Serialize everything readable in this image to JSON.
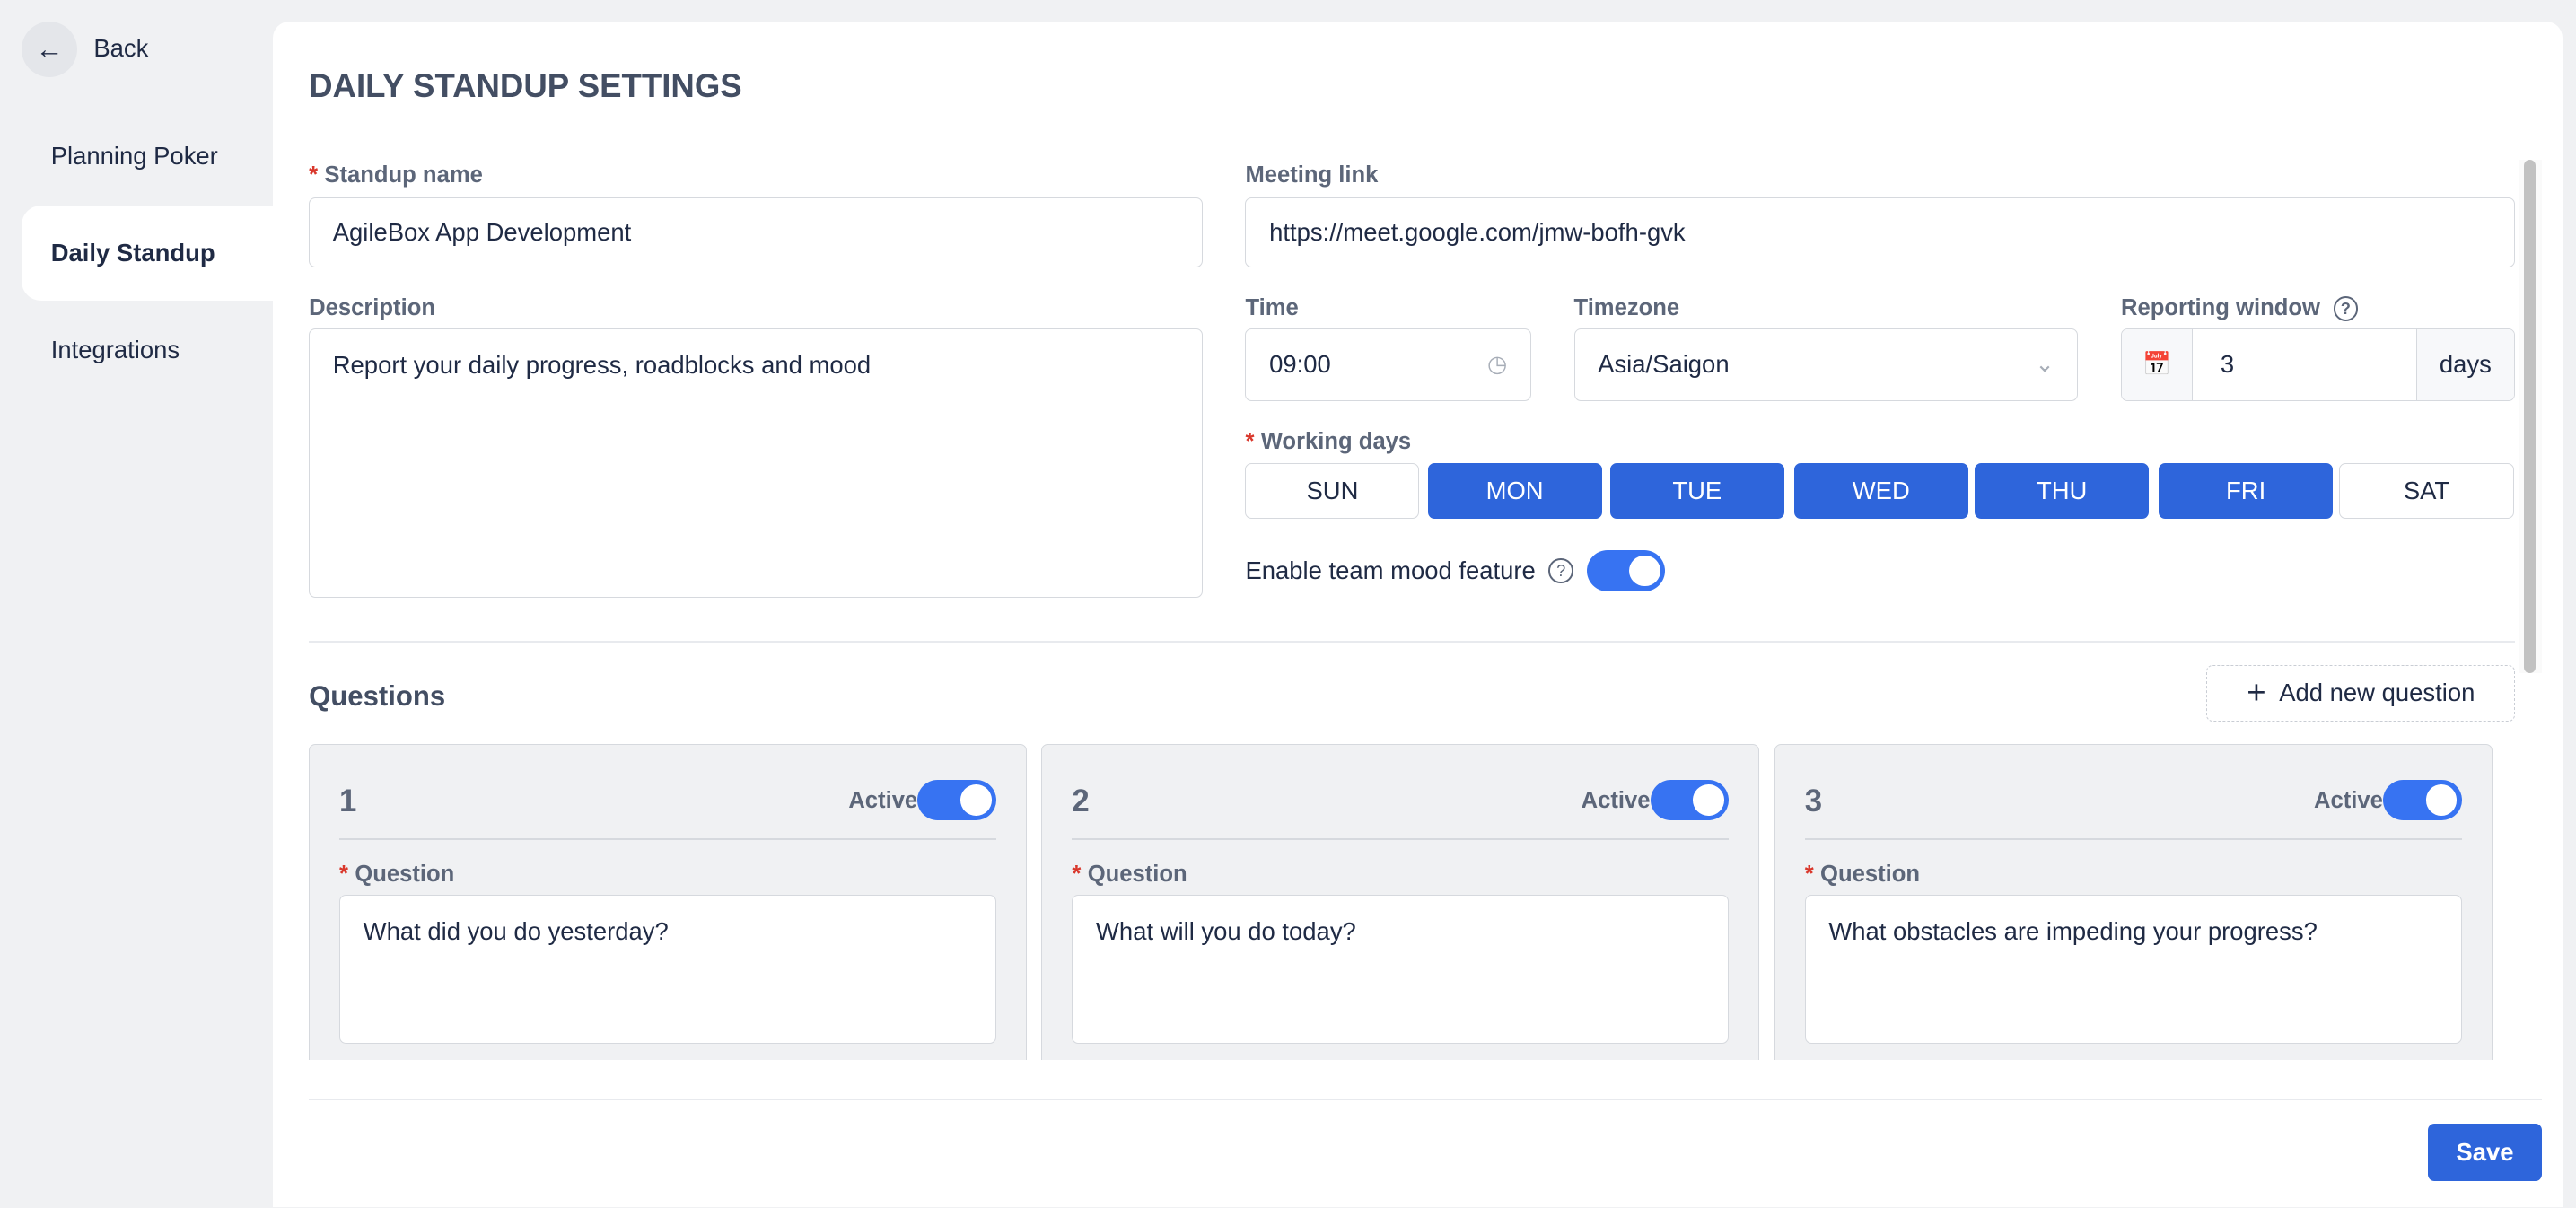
{
  "sidebar": {
    "back_label": "Back",
    "items": [
      {
        "label": "Planning Poker"
      },
      {
        "label": "Daily Standup",
        "active": true
      },
      {
        "label": "Integrations"
      }
    ]
  },
  "page": {
    "title": "DAILY STANDUP SETTINGS"
  },
  "form": {
    "standup_name": {
      "label": "Standup name",
      "value": "AgileBox App Development",
      "required": true
    },
    "meeting_link": {
      "label": "Meeting link",
      "value": "https://meet.google.com/jmw-bofh-gvk"
    },
    "description": {
      "label": "Description",
      "value": "Report your daily progress, roadblocks and mood"
    },
    "time": {
      "label": "Time",
      "value": "09:00"
    },
    "timezone": {
      "label": "Timezone",
      "value": "Asia/Saigon"
    },
    "reporting_window": {
      "label": "Reporting window",
      "value": "3",
      "unit": "days"
    },
    "working_days": {
      "label": "Working days",
      "required": true,
      "days": [
        {
          "label": "SUN",
          "selected": false
        },
        {
          "label": "MON",
          "selected": true
        },
        {
          "label": "TUE",
          "selected": true
        },
        {
          "label": "WED",
          "selected": true
        },
        {
          "label": "THU",
          "selected": true
        },
        {
          "label": "FRI",
          "selected": true
        },
        {
          "label": "SAT",
          "selected": false
        }
      ]
    },
    "mood": {
      "label": "Enable team mood feature",
      "enabled": true
    }
  },
  "questions": {
    "title": "Questions",
    "add_label": "Add new question",
    "items": [
      {
        "number": "1",
        "active_label": "Active",
        "active": true,
        "field_label": "Question",
        "value": "What did you do yesterday?"
      },
      {
        "number": "2",
        "active_label": "Active",
        "active": true,
        "field_label": "Question",
        "value": "What will you do today?"
      },
      {
        "number": "3",
        "active_label": "Active",
        "active": true,
        "field_label": "Question",
        "value": "What obstacles are impeding your progress?"
      }
    ]
  },
  "footer": {
    "save_label": "Save"
  },
  "colors": {
    "primary": "#2e65db",
    "toggle": "#3773f2",
    "required": "#d9372b"
  }
}
